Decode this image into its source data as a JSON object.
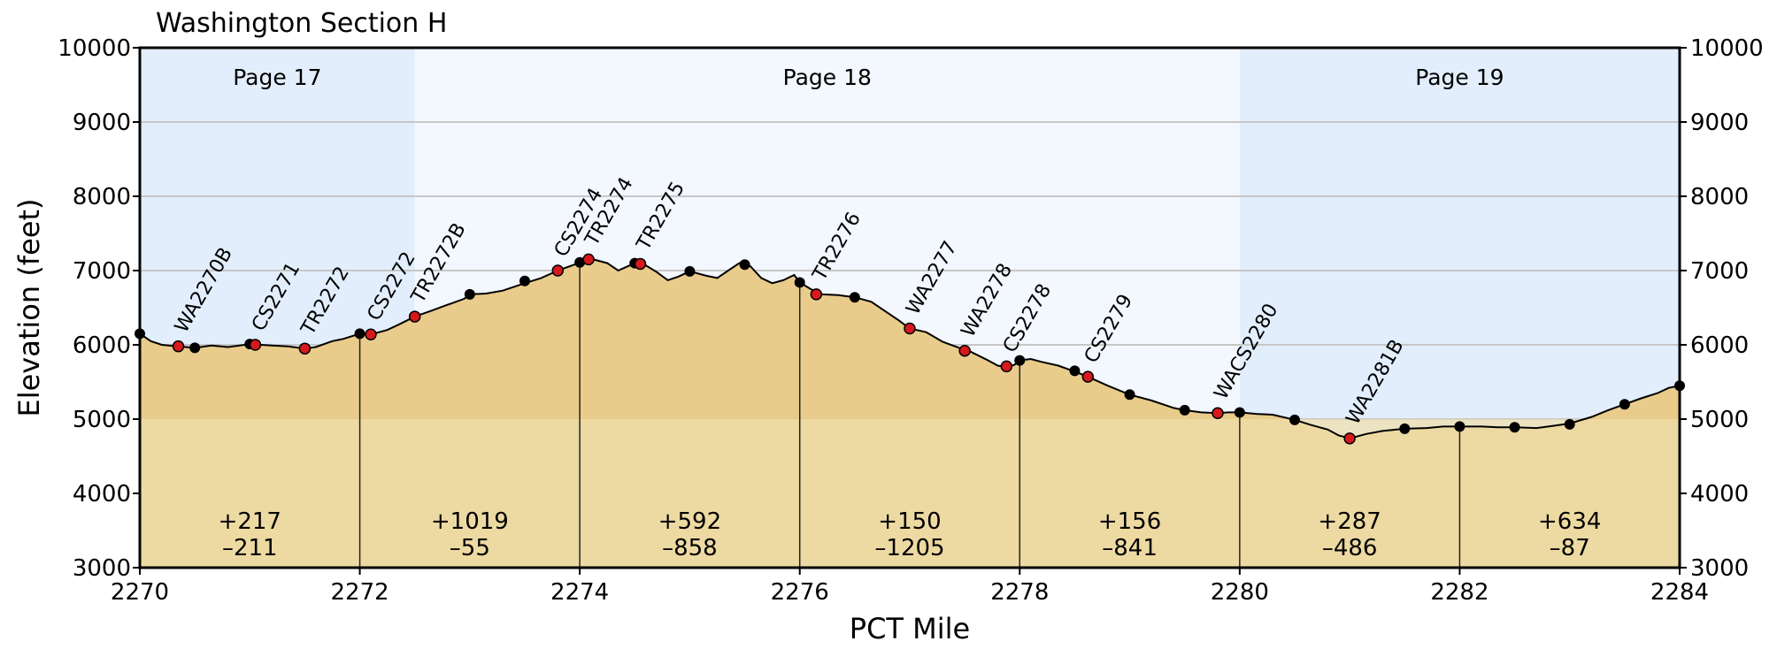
{
  "chart_data": {
    "type": "area",
    "title": "Washington Section H",
    "xlabel": "PCT Mile",
    "ylabel": "Elevation (feet)",
    "xlim": [
      2270,
      2284
    ],
    "ylim": [
      3000,
      10000
    ],
    "x_ticks": [
      2270,
      2272,
      2274,
      2276,
      2278,
      2280,
      2282,
      2284
    ],
    "y_ticks": [
      3000,
      4000,
      5000,
      6000,
      7000,
      8000,
      9000,
      10000
    ],
    "grid": true,
    "colors": {
      "page_band_dark": "#e3eefc",
      "page_band_light": "#f3f7fe",
      "fill_upper": "#e9cc8b",
      "fill_lower": "#efdfaa",
      "profile_line": "#000000",
      "red_marker": "#d7191c",
      "black_marker": "#000000",
      "grid": "#c7c7c7"
    },
    "pages": [
      {
        "label": "Page 17",
        "start": 2270,
        "end": 2272.5
      },
      {
        "label": "Page 18",
        "start": 2272.5,
        "end": 2280
      },
      {
        "label": "Page 19",
        "start": 2280,
        "end": 2284
      }
    ],
    "profile": [
      [
        2270.0,
        6150
      ],
      [
        2270.1,
        6050
      ],
      [
        2270.2,
        6000
      ],
      [
        2270.35,
        5980
      ],
      [
        2270.5,
        5960
      ],
      [
        2270.65,
        5990
      ],
      [
        2270.8,
        5970
      ],
      [
        2271.0,
        6010
      ],
      [
        2271.1,
        6000
      ],
      [
        2271.2,
        5990
      ],
      [
        2271.35,
        5980
      ],
      [
        2271.5,
        5950
      ],
      [
        2271.6,
        5970
      ],
      [
        2271.75,
        6050
      ],
      [
        2271.85,
        6080
      ],
      [
        2272.0,
        6150
      ],
      [
        2272.1,
        6140
      ],
      [
        2272.25,
        6200
      ],
      [
        2272.35,
        6270
      ],
      [
        2272.5,
        6380
      ],
      [
        2272.65,
        6460
      ],
      [
        2272.8,
        6540
      ],
      [
        2272.95,
        6620
      ],
      [
        2273.0,
        6680
      ],
      [
        2273.15,
        6690
      ],
      [
        2273.3,
        6730
      ],
      [
        2273.5,
        6830
      ],
      [
        2273.65,
        6900
      ],
      [
        2273.8,
        7000
      ],
      [
        2273.95,
        7080
      ],
      [
        2274.0,
        7110
      ],
      [
        2274.1,
        7160
      ],
      [
        2274.25,
        7100
      ],
      [
        2274.35,
        7000
      ],
      [
        2274.5,
        7100
      ],
      [
        2274.6,
        7070
      ],
      [
        2274.7,
        6980
      ],
      [
        2274.8,
        6870
      ],
      [
        2274.9,
        6920
      ],
      [
        2275.0,
        6990
      ],
      [
        2275.15,
        6930
      ],
      [
        2275.25,
        6900
      ],
      [
        2275.35,
        7000
      ],
      [
        2275.45,
        7100
      ],
      [
        2275.55,
        7060
      ],
      [
        2275.65,
        6900
      ],
      [
        2275.75,
        6830
      ],
      [
        2275.85,
        6870
      ],
      [
        2275.95,
        6940
      ],
      [
        2276.0,
        6840
      ],
      [
        2276.1,
        6750
      ],
      [
        2276.2,
        6680
      ],
      [
        2276.35,
        6670
      ],
      [
        2276.5,
        6640
      ],
      [
        2276.65,
        6580
      ],
      [
        2276.75,
        6480
      ],
      [
        2276.9,
        6330
      ],
      [
        2277.0,
        6220
      ],
      [
        2277.15,
        6170
      ],
      [
        2277.3,
        6040
      ],
      [
        2277.45,
        5960
      ],
      [
        2277.55,
        5910
      ],
      [
        2277.7,
        5800
      ],
      [
        2277.8,
        5720
      ],
      [
        2277.88,
        5700
      ],
      [
        2277.95,
        5730
      ],
      [
        2278.0,
        5790
      ],
      [
        2278.1,
        5810
      ],
      [
        2278.2,
        5770
      ],
      [
        2278.35,
        5720
      ],
      [
        2278.5,
        5640
      ],
      [
        2278.62,
        5570
      ],
      [
        2278.8,
        5450
      ],
      [
        2279.0,
        5330
      ],
      [
        2279.2,
        5250
      ],
      [
        2279.4,
        5150
      ],
      [
        2279.5,
        5120
      ],
      [
        2279.65,
        5090
      ],
      [
        2279.8,
        5080
      ],
      [
        2279.9,
        5090
      ],
      [
        2280.0,
        5090
      ],
      [
        2280.15,
        5070
      ],
      [
        2280.3,
        5060
      ],
      [
        2280.5,
        4990
      ],
      [
        2280.65,
        4920
      ],
      [
        2280.8,
        4860
      ],
      [
        2280.9,
        4780
      ],
      [
        2281.0,
        4740
      ],
      [
        2281.15,
        4800
      ],
      [
        2281.3,
        4840
      ],
      [
        2281.5,
        4870
      ],
      [
        2281.7,
        4880
      ],
      [
        2281.85,
        4900
      ],
      [
        2282.0,
        4900
      ],
      [
        2282.2,
        4900
      ],
      [
        2282.35,
        4890
      ],
      [
        2282.5,
        4890
      ],
      [
        2282.7,
        4880
      ],
      [
        2282.85,
        4910
      ],
      [
        2283.0,
        4940
      ],
      [
        2283.2,
        5030
      ],
      [
        2283.35,
        5120
      ],
      [
        2283.5,
        5200
      ],
      [
        2283.65,
        5280
      ],
      [
        2283.8,
        5350
      ],
      [
        2283.9,
        5420
      ],
      [
        2284.0,
        5450
      ]
    ],
    "red_waypoints": [
      {
        "label": "WA2270B",
        "mile": 2270.35,
        "elev": 5980
      },
      {
        "label": "CS2271",
        "mile": 2271.05,
        "elev": 6000
      },
      {
        "label": "TR2272",
        "mile": 2271.5,
        "elev": 5950
      },
      {
        "label": "CS2272",
        "mile": 2272.1,
        "elev": 6140
      },
      {
        "label": "TR2272B",
        "mile": 2272.5,
        "elev": 6380
      },
      {
        "label": "CS2274",
        "mile": 2273.8,
        "elev": 7000
      },
      {
        "label": "TR2274",
        "mile": 2274.08,
        "elev": 7150
      },
      {
        "label": "TR2275",
        "mile": 2274.55,
        "elev": 7090
      },
      {
        "label": "TR2276",
        "mile": 2276.15,
        "elev": 6680
      },
      {
        "label": "WA2277",
        "mile": 2277.0,
        "elev": 6220
      },
      {
        "label": "WA2278",
        "mile": 2277.5,
        "elev": 5920
      },
      {
        "label": "CS2278",
        "mile": 2277.88,
        "elev": 5710
      },
      {
        "label": "CS2279",
        "mile": 2278.62,
        "elev": 5570
      },
      {
        "label": "WACS2280",
        "mile": 2279.8,
        "elev": 5080
      },
      {
        "label": "WA2281B",
        "mile": 2281.0,
        "elev": 4740
      }
    ],
    "black_points": [
      [
        2270.0,
        6150
      ],
      [
        2270.5,
        5960
      ],
      [
        2271.0,
        6010
      ],
      [
        2272.0,
        6150
      ],
      [
        2273.0,
        6680
      ],
      [
        2273.5,
        6860
      ],
      [
        2274.0,
        7110
      ],
      [
        2274.5,
        7100
      ],
      [
        2275.0,
        6990
      ],
      [
        2275.5,
        7080
      ],
      [
        2276.0,
        6840
      ],
      [
        2276.5,
        6640
      ],
      [
        2277.5,
        5920
      ],
      [
        2278.0,
        5790
      ],
      [
        2278.5,
        5650
      ],
      [
        2279.0,
        5330
      ],
      [
        2279.5,
        5120
      ],
      [
        2280.0,
        5090
      ],
      [
        2280.5,
        4990
      ],
      [
        2281.5,
        4870
      ],
      [
        2282.0,
        4900
      ],
      [
        2282.5,
        4890
      ],
      [
        2283.0,
        4930
      ],
      [
        2283.5,
        5200
      ],
      [
        2284.0,
        5450
      ]
    ],
    "segments": [
      {
        "start": 2270,
        "end": 2272,
        "gain": "+217",
        "loss": "–211"
      },
      {
        "start": 2272,
        "end": 2274,
        "gain": "+1019",
        "loss": "–55"
      },
      {
        "start": 2274,
        "end": 2276,
        "gain": "+592",
        "loss": "–858"
      },
      {
        "start": 2276,
        "end": 2278,
        "gain": "+150",
        "loss": "–1205"
      },
      {
        "start": 2278,
        "end": 2280,
        "gain": "+156",
        "loss": "–841"
      },
      {
        "start": 2280,
        "end": 2282,
        "gain": "+287",
        "loss": "–486"
      },
      {
        "start": 2282,
        "end": 2284,
        "gain": "+634",
        "loss": "–87"
      }
    ],
    "segment_dividers": [
      2272,
      2274,
      2276,
      2278,
      2280,
      2282
    ]
  }
}
